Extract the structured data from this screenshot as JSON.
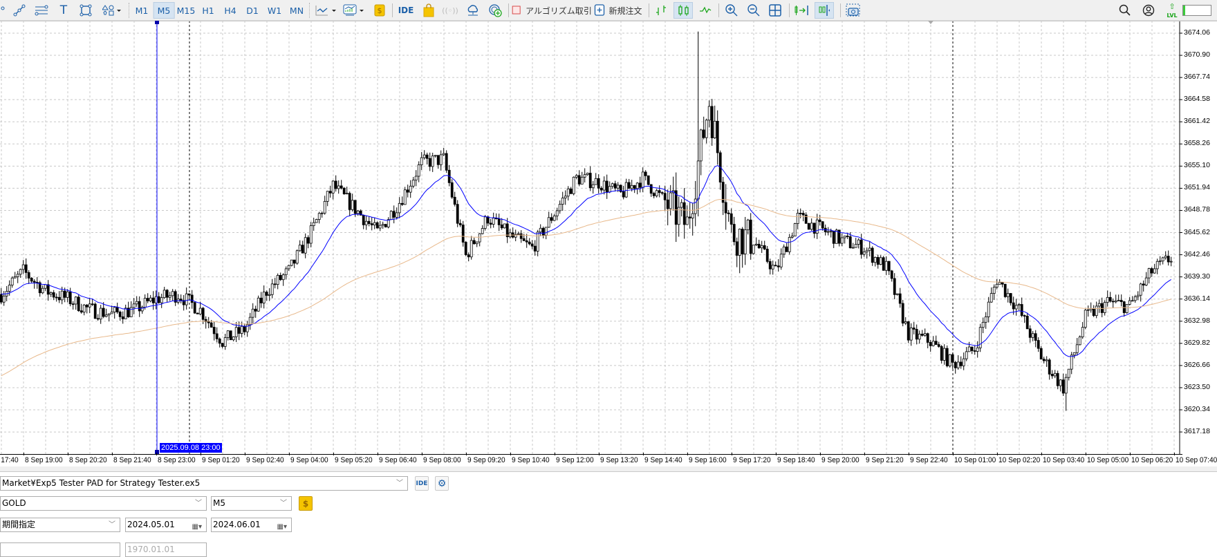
{
  "toolbar": {
    "timeframes": [
      "M1",
      "M5",
      "M15",
      "H1",
      "H4",
      "D1",
      "W1",
      "MN"
    ],
    "selected_timeframe": "M5",
    "ide_label": "IDE",
    "algo_trading_label": "アルゴリズム取引",
    "new_order_label": "新規注文",
    "level_label": "LVL",
    "level_progress": 0.08,
    "icons": [
      "trendline-icon",
      "channel-icon",
      "text-icon",
      "rectangle-icon",
      "shapes-icon",
      "line-chart-icon",
      "indicators-icon",
      "dollar-icon",
      "market-bag-icon",
      "signal-icon",
      "cloud-icon",
      "vps-globe-icon",
      "bar-chart-icon",
      "candlestick-icon",
      "line-icon",
      "zoom-in-icon",
      "zoom-out-icon",
      "tile-icon",
      "autoscroll-icon",
      "chart-shift-icon",
      "screenshot-icon",
      "search-icon",
      "user-icon"
    ],
    "colors": {
      "accent": "#1b5fa8",
      "green": "#1aa51a",
      "gold": "#f5c400"
    }
  },
  "chart_data": {
    "type": "candlestick",
    "symbol_timeframe": "M5",
    "price_ticks": [
      "3674.06",
      "3670.90",
      "3667.74",
      "3664.58",
      "3661.42",
      "3658.26",
      "3655.10",
      "3651.94",
      "3648.78",
      "3645.62",
      "3642.46",
      "3639.30",
      "3636.14",
      "3632.98",
      "3629.82",
      "3626.66",
      "3623.50",
      "3620.34",
      "3617.18"
    ],
    "time_ticks": [
      "8 Sep 17:40",
      "8 Sep 19:00",
      "8 Sep 20:20",
      "8 Sep 21:40",
      "8 Sep 23:00",
      "9 Sep 01:20",
      "9 Sep 02:40",
      "9 Sep 04:00",
      "9 Sep 05:20",
      "9 Sep 06:40",
      "9 Sep 08:00",
      "9 Sep 09:20",
      "9 Sep 10:40",
      "9 Sep 12:00",
      "9 Sep 13:20",
      "9 Sep 14:40",
      "9 Sep 16:00",
      "9 Sep 17:20",
      "9 Sep 18:40",
      "9 Sep 20:00",
      "9 Sep 21:20",
      "9 Sep 22:40",
      "10 Sep 01:00",
      "10 Sep 02:20",
      "10 Sep 03:40",
      "10 Sep 05:00",
      "10 Sep 06:20",
      "10 Sep 07:40"
    ],
    "crosshair_time": "2025.09.08 23:00",
    "approx_close_every_40min": [
      3636.8,
      3640.1,
      3637.3,
      3636.2,
      3634.6,
      3634.0,
      3634.6,
      3636.2,
      3636.8,
      3634.6,
      3630.1,
      3631.8,
      3637.3,
      3640.1,
      3645.6,
      3652.3,
      3649.0,
      3645.6,
      3650.0,
      3655.6,
      3656.1,
      3642.3,
      3647.8,
      3645.1,
      3643.4,
      3648.4,
      3653.4,
      3652.8,
      3651.1,
      3653.4,
      3650.0,
      3646.7,
      3664.4,
      3645.6,
      3644.5,
      3640.1,
      3647.8,
      3646.2,
      3644.5,
      3643.4,
      3640.6,
      3631.2,
      3630.1,
      3626.8,
      3629.0,
      3639.0,
      3634.6,
      3627.9,
      3623.5,
      3633.5,
      3635.7,
      3635.1,
      3640.1,
      3642.3
    ],
    "visible_high": 3674.3,
    "visible_low": 3620.2,
    "series": [
      {
        "kind": "moving-average-fast",
        "color": "#0000ff"
      },
      {
        "kind": "moving-average-slow",
        "color": "#e8b88a"
      }
    ],
    "bull_candle_color": "#ffffff",
    "bear_candle_color": "#000000",
    "grid": true
  },
  "tester": {
    "expert_path": "Market¥Exp5 Tester PAD for Strategy Tester.ex5",
    "ide_label": "IDE",
    "symbol": "GOLD",
    "timeframe": "M5",
    "date_mode": "期間指定",
    "date_from": "2024.05.01",
    "date_to": "2024.06.01",
    "forward_date": "1970.01.01"
  }
}
